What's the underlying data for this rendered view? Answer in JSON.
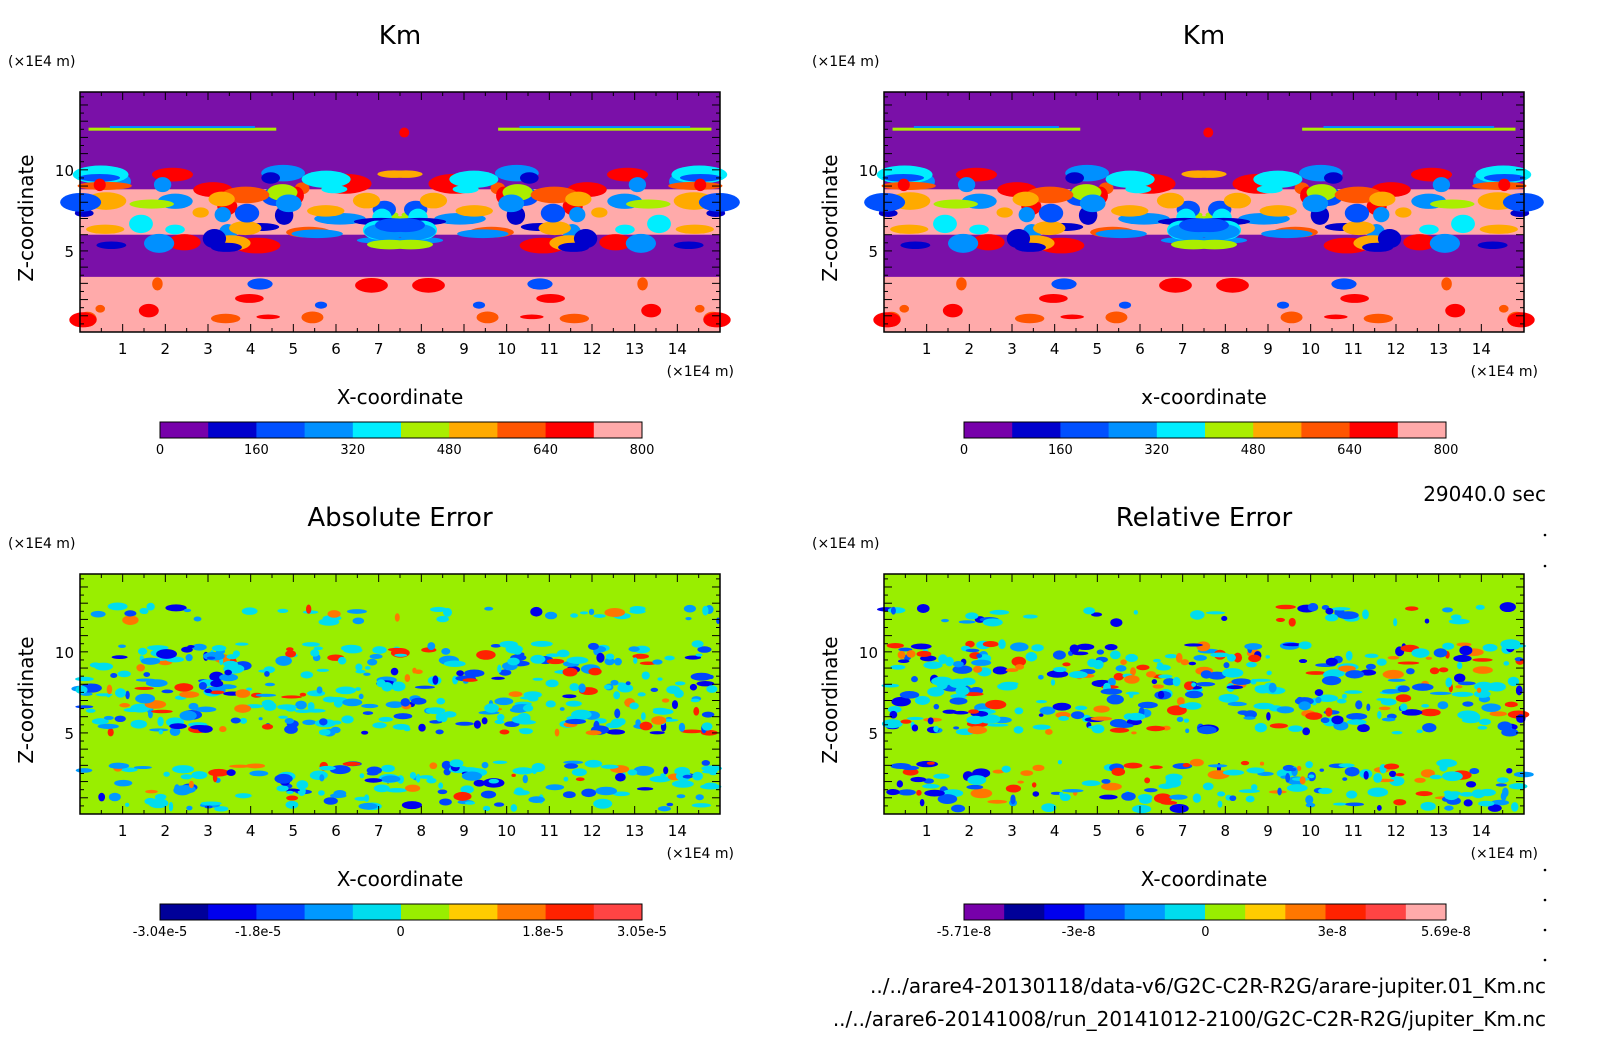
{
  "chart_data": [
    {
      "type": "heatmap",
      "title": "Km",
      "xlabel": "X-coordinate",
      "ylabel": "Z-coordinate",
      "x_unit": "(×1E4 m)",
      "y_unit": "(×1E4 m)",
      "xlim": [
        0,
        15
      ],
      "ylim": [
        0,
        14.8
      ],
      "x_ticks": [
        "1",
        "2",
        "3",
        "4",
        "5",
        "6",
        "7",
        "8",
        "9",
        "10",
        "11",
        "12",
        "13",
        "14"
      ],
      "y_ticks": [
        "5",
        "10"
      ],
      "colorbar": {
        "min": 0,
        "max": 800,
        "labels": [
          "0",
          "160",
          "320",
          "480",
          "640",
          "800"
        ],
        "colors": [
          "#7700aa",
          "#0000cc",
          "#0050ff",
          "#0090ff",
          "#00eeff",
          "#aaee00",
          "#ffaa00",
          "#ff5500",
          "#ff0000",
          "#ffaaaa"
        ]
      },
      "background_color": "#7a10a8"
    },
    {
      "type": "heatmap",
      "title": "Km",
      "xlabel": "x-coordinate",
      "ylabel": "Z-coordinate",
      "x_unit": "(×1E4 m)",
      "y_unit": "(×1E4 m)",
      "xlim": [
        0,
        15
      ],
      "ylim": [
        0,
        14.8
      ],
      "x_ticks": [
        "1",
        "2",
        "3",
        "4",
        "5",
        "6",
        "7",
        "8",
        "9",
        "10",
        "11",
        "12",
        "13",
        "14"
      ],
      "y_ticks": [
        "5",
        "10"
      ],
      "colorbar": {
        "min": 0,
        "max": 800,
        "labels": [
          "0",
          "160",
          "320",
          "480",
          "640",
          "800"
        ],
        "colors": [
          "#7700aa",
          "#0000cc",
          "#0050ff",
          "#0090ff",
          "#00eeff",
          "#aaee00",
          "#ffaa00",
          "#ff5500",
          "#ff0000",
          "#ffaaaa"
        ]
      },
      "background_color": "#7a10a8"
    },
    {
      "type": "heatmap",
      "title": "Absolute Error",
      "xlabel": "X-coordinate",
      "ylabel": "Z-coordinate",
      "x_unit": "(×1E4 m)",
      "y_unit": "(×1E4 m)",
      "xlim": [
        0,
        15
      ],
      "ylim": [
        0,
        14.8
      ],
      "x_ticks": [
        "1",
        "2",
        "3",
        "4",
        "5",
        "6",
        "7",
        "8",
        "9",
        "10",
        "11",
        "12",
        "13",
        "14"
      ],
      "y_ticks": [
        "5",
        "10"
      ],
      "colorbar": {
        "min": -3.04e-05,
        "max": 3.05e-05,
        "labels": [
          "-3.04e-5",
          "-1.8e-5",
          "0",
          "1.8e-5",
          "3.05e-5"
        ],
        "colors": [
          "#000099",
          "#0000ee",
          "#0044ff",
          "#0099ff",
          "#00ddee",
          "#99ee00",
          "#ffcc00",
          "#ff7700",
          "#ff2200",
          "#ff4444"
        ]
      },
      "background_color": "#99ee00"
    },
    {
      "type": "heatmap",
      "title": "Relative Error",
      "xlabel": "X-coordinate",
      "ylabel": "Z-coordinate",
      "x_unit": "(×1E4 m)",
      "y_unit": "(×1E4 m)",
      "xlim": [
        0,
        15
      ],
      "ylim": [
        0,
        14.8
      ],
      "x_ticks": [
        "1",
        "2",
        "3",
        "4",
        "5",
        "6",
        "7",
        "8",
        "9",
        "10",
        "11",
        "12",
        "13",
        "14"
      ],
      "y_ticks": [
        "5",
        "10"
      ],
      "colorbar": {
        "min": -5.71e-08,
        "max": 5.69e-08,
        "labels": [
          "-5.71e-8",
          "-3e-8",
          "0",
          "3e-8",
          "5.69e-8"
        ],
        "colors": [
          "#7700aa",
          "#000099",
          "#0000ee",
          "#0055ff",
          "#0099ff",
          "#00ddee",
          "#99ee00",
          "#ffcc00",
          "#ff7700",
          "#ff2200",
          "#ff4444",
          "#ffaaaa"
        ]
      },
      "background_color": "#99ee00"
    }
  ],
  "info": {
    "time": "29040.0 sec",
    "file1": "../../arare4-20130118/data-v6/G2C-C2R-R2G/arare-jupiter.01_Km.nc",
    "file2": "../../arare6-20141008/run_20141012-2100/G2C-C2R-R2G/jupiter_Km.nc"
  }
}
